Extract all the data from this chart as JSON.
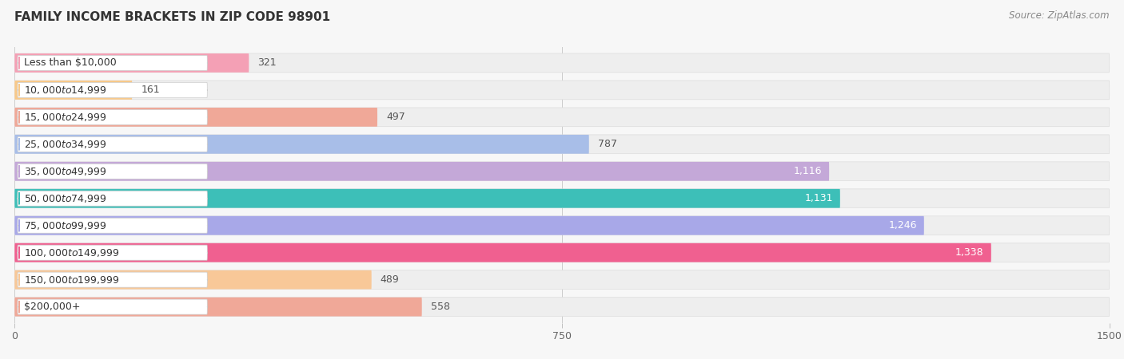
{
  "title": "FAMILY INCOME BRACKETS IN ZIP CODE 98901",
  "source": "Source: ZipAtlas.com",
  "categories": [
    "Less than $10,000",
    "$10,000 to $14,999",
    "$15,000 to $24,999",
    "$25,000 to $34,999",
    "$35,000 to $49,999",
    "$50,000 to $74,999",
    "$75,000 to $99,999",
    "$100,000 to $149,999",
    "$150,000 to $199,999",
    "$200,000+"
  ],
  "values": [
    321,
    161,
    497,
    787,
    1116,
    1131,
    1246,
    1338,
    489,
    558
  ],
  "bar_colors": [
    "#F4A0B5",
    "#F8C98A",
    "#F0A898",
    "#A8BEE8",
    "#C4A8D8",
    "#3DBFB8",
    "#A8A8E8",
    "#F06090",
    "#F8C898",
    "#F0A898"
  ],
  "xlim": [
    0,
    1500
  ],
  "xticks": [
    0,
    750,
    1500
  ],
  "background_color": "#f7f7f7",
  "row_bg_color": "#efefef",
  "title_fontsize": 11,
  "source_fontsize": 8.5,
  "label_fontsize": 9,
  "cat_fontsize": 9,
  "value_threshold_inside": 900
}
